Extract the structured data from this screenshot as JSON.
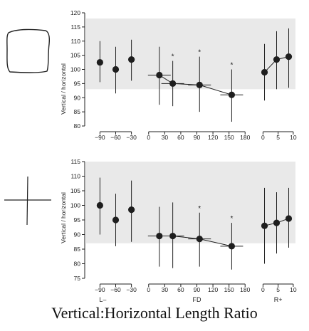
{
  "caption": "Vertical:Horizontal Length Ratio",
  "colors": {
    "band": "#e9e9e9",
    "ink": "#222222",
    "marker": "#1e1e1e"
  },
  "chart_data": [
    {
      "type": "scatter",
      "icon": "square-figure-icon",
      "ylabel": "Vertical / horizontal",
      "ylim": [
        80,
        120
      ],
      "yticks": [
        80,
        85,
        90,
        95,
        100,
        105,
        110,
        115,
        120
      ],
      "band": [
        93,
        118
      ],
      "groups": [
        {
          "label": "",
          "xlim": [
            -100,
            -20
          ],
          "xticks": [
            -90,
            -60,
            -30
          ],
          "points": [
            {
              "x": -90,
              "y": 102.5,
              "lo": 95.5,
              "hi": 110,
              "star": false,
              "hbar": 0
            },
            {
              "x": -60,
              "y": 100,
              "lo": 91.5,
              "hi": 108,
              "star": false,
              "hbar": 0
            },
            {
              "x": -30,
              "y": 103.5,
              "lo": 96,
              "hi": 110.5,
              "star": false,
              "hbar": 0
            }
          ],
          "connect": false
        },
        {
          "label": "",
          "xlim": [
            -5,
            185
          ],
          "xticks": [
            0,
            30,
            60,
            90,
            120,
            150,
            180
          ],
          "points": [
            {
              "x": 20,
              "y": 98,
              "lo": 87.5,
              "hi": 108,
              "star": false,
              "hbar": 16
            },
            {
              "x": 45,
              "y": 95,
              "lo": 87,
              "hi": 103,
              "star": true,
              "hbar": 16
            },
            {
              "x": 95,
              "y": 94.5,
              "lo": 85,
              "hi": 104.5,
              "star": true,
              "hbar": 16
            },
            {
              "x": 155,
              "y": 91,
              "lo": 81.5,
              "hi": 100,
              "star": true,
              "hbar": 16
            }
          ],
          "connect": true
        },
        {
          "label": "",
          "xlim": [
            -0.8,
            10.5
          ],
          "xticks": [
            0,
            5,
            10
          ],
          "points": [
            {
              "x": 0.5,
              "y": 99,
              "lo": 89,
              "hi": 109,
              "star": false,
              "hbar": 0
            },
            {
              "x": 4.5,
              "y": 103.5,
              "lo": 93,
              "hi": 113.5,
              "star": false,
              "hbar": 0
            },
            {
              "x": 8.5,
              "y": 104.5,
              "lo": 93.5,
              "hi": 114.5,
              "star": false,
              "hbar": 0
            }
          ],
          "connect": true
        }
      ]
    },
    {
      "type": "scatter",
      "icon": "cross-figure-icon",
      "ylabel": "Vertical / horizontal",
      "ylim": [
        75,
        115
      ],
      "yticks": [
        75,
        80,
        85,
        90,
        95,
        100,
        105,
        110,
        115
      ],
      "band": [
        87,
        115
      ],
      "groups": [
        {
          "label": "L–",
          "xlim": [
            -100,
            -20
          ],
          "xticks": [
            -90,
            -60,
            -30
          ],
          "points": [
            {
              "x": -90,
              "y": 100,
              "lo": 90,
              "hi": 109.5,
              "star": false,
              "hbar": 0
            },
            {
              "x": -60,
              "y": 95,
              "lo": 86,
              "hi": 104,
              "star": false,
              "hbar": 0
            },
            {
              "x": -30,
              "y": 98.5,
              "lo": 87.5,
              "hi": 108.5,
              "star": false,
              "hbar": 0
            }
          ],
          "connect": false
        },
        {
          "label": "FD",
          "xlim": [
            -5,
            185
          ],
          "xticks": [
            0,
            30,
            60,
            90,
            120,
            150,
            180
          ],
          "points": [
            {
              "x": 20,
              "y": 89.5,
              "lo": 79,
              "hi": 99.5,
              "star": false,
              "hbar": 16
            },
            {
              "x": 45,
              "y": 89.5,
              "lo": 78.5,
              "hi": 101,
              "star": false,
              "hbar": 16
            },
            {
              "x": 95,
              "y": 88.5,
              "lo": 79,
              "hi": 97.5,
              "star": true,
              "hbar": 16
            },
            {
              "x": 155,
              "y": 86,
              "lo": 78,
              "hi": 94,
              "star": true,
              "hbar": 16
            }
          ],
          "connect": true
        },
        {
          "label": "R+",
          "xlim": [
            -0.8,
            10.5
          ],
          "xticks": [
            0,
            5,
            10
          ],
          "points": [
            {
              "x": 0.5,
              "y": 93,
              "lo": 80,
              "hi": 106,
              "star": false,
              "hbar": 0
            },
            {
              "x": 4.5,
              "y": 94,
              "lo": 83.5,
              "hi": 104.5,
              "star": false,
              "hbar": 0
            },
            {
              "x": 8.5,
              "y": 95.5,
              "lo": 85.5,
              "hi": 106,
              "star": false,
              "hbar": 0
            }
          ],
          "connect": true
        }
      ]
    }
  ]
}
